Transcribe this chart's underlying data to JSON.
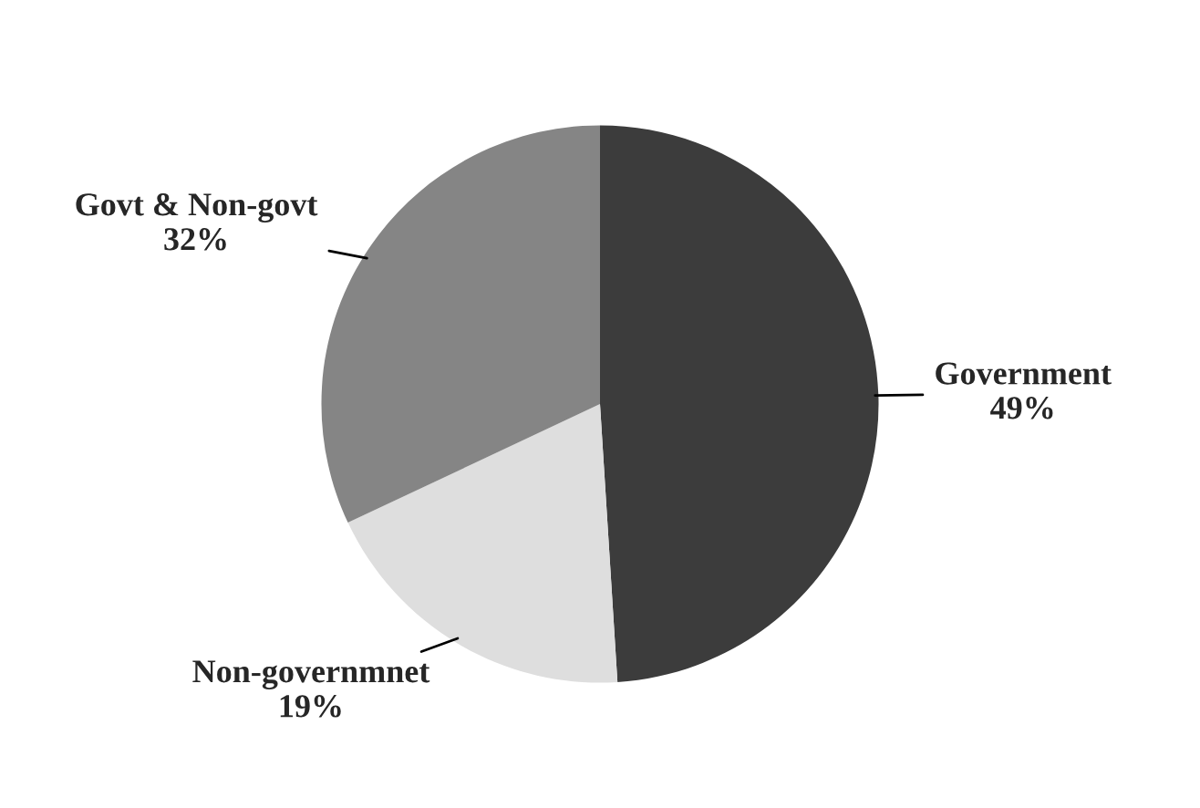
{
  "chart_data": {
    "type": "pie",
    "categories": [
      "Government",
      "Non-governmnet",
      "Govt & Non-govt"
    ],
    "values": [
      49,
      19,
      32
    ],
    "value_labels": [
      "49%",
      "19%",
      "32%"
    ],
    "colors": [
      "#3c3c3c",
      "#dedede",
      "#858585"
    ]
  }
}
